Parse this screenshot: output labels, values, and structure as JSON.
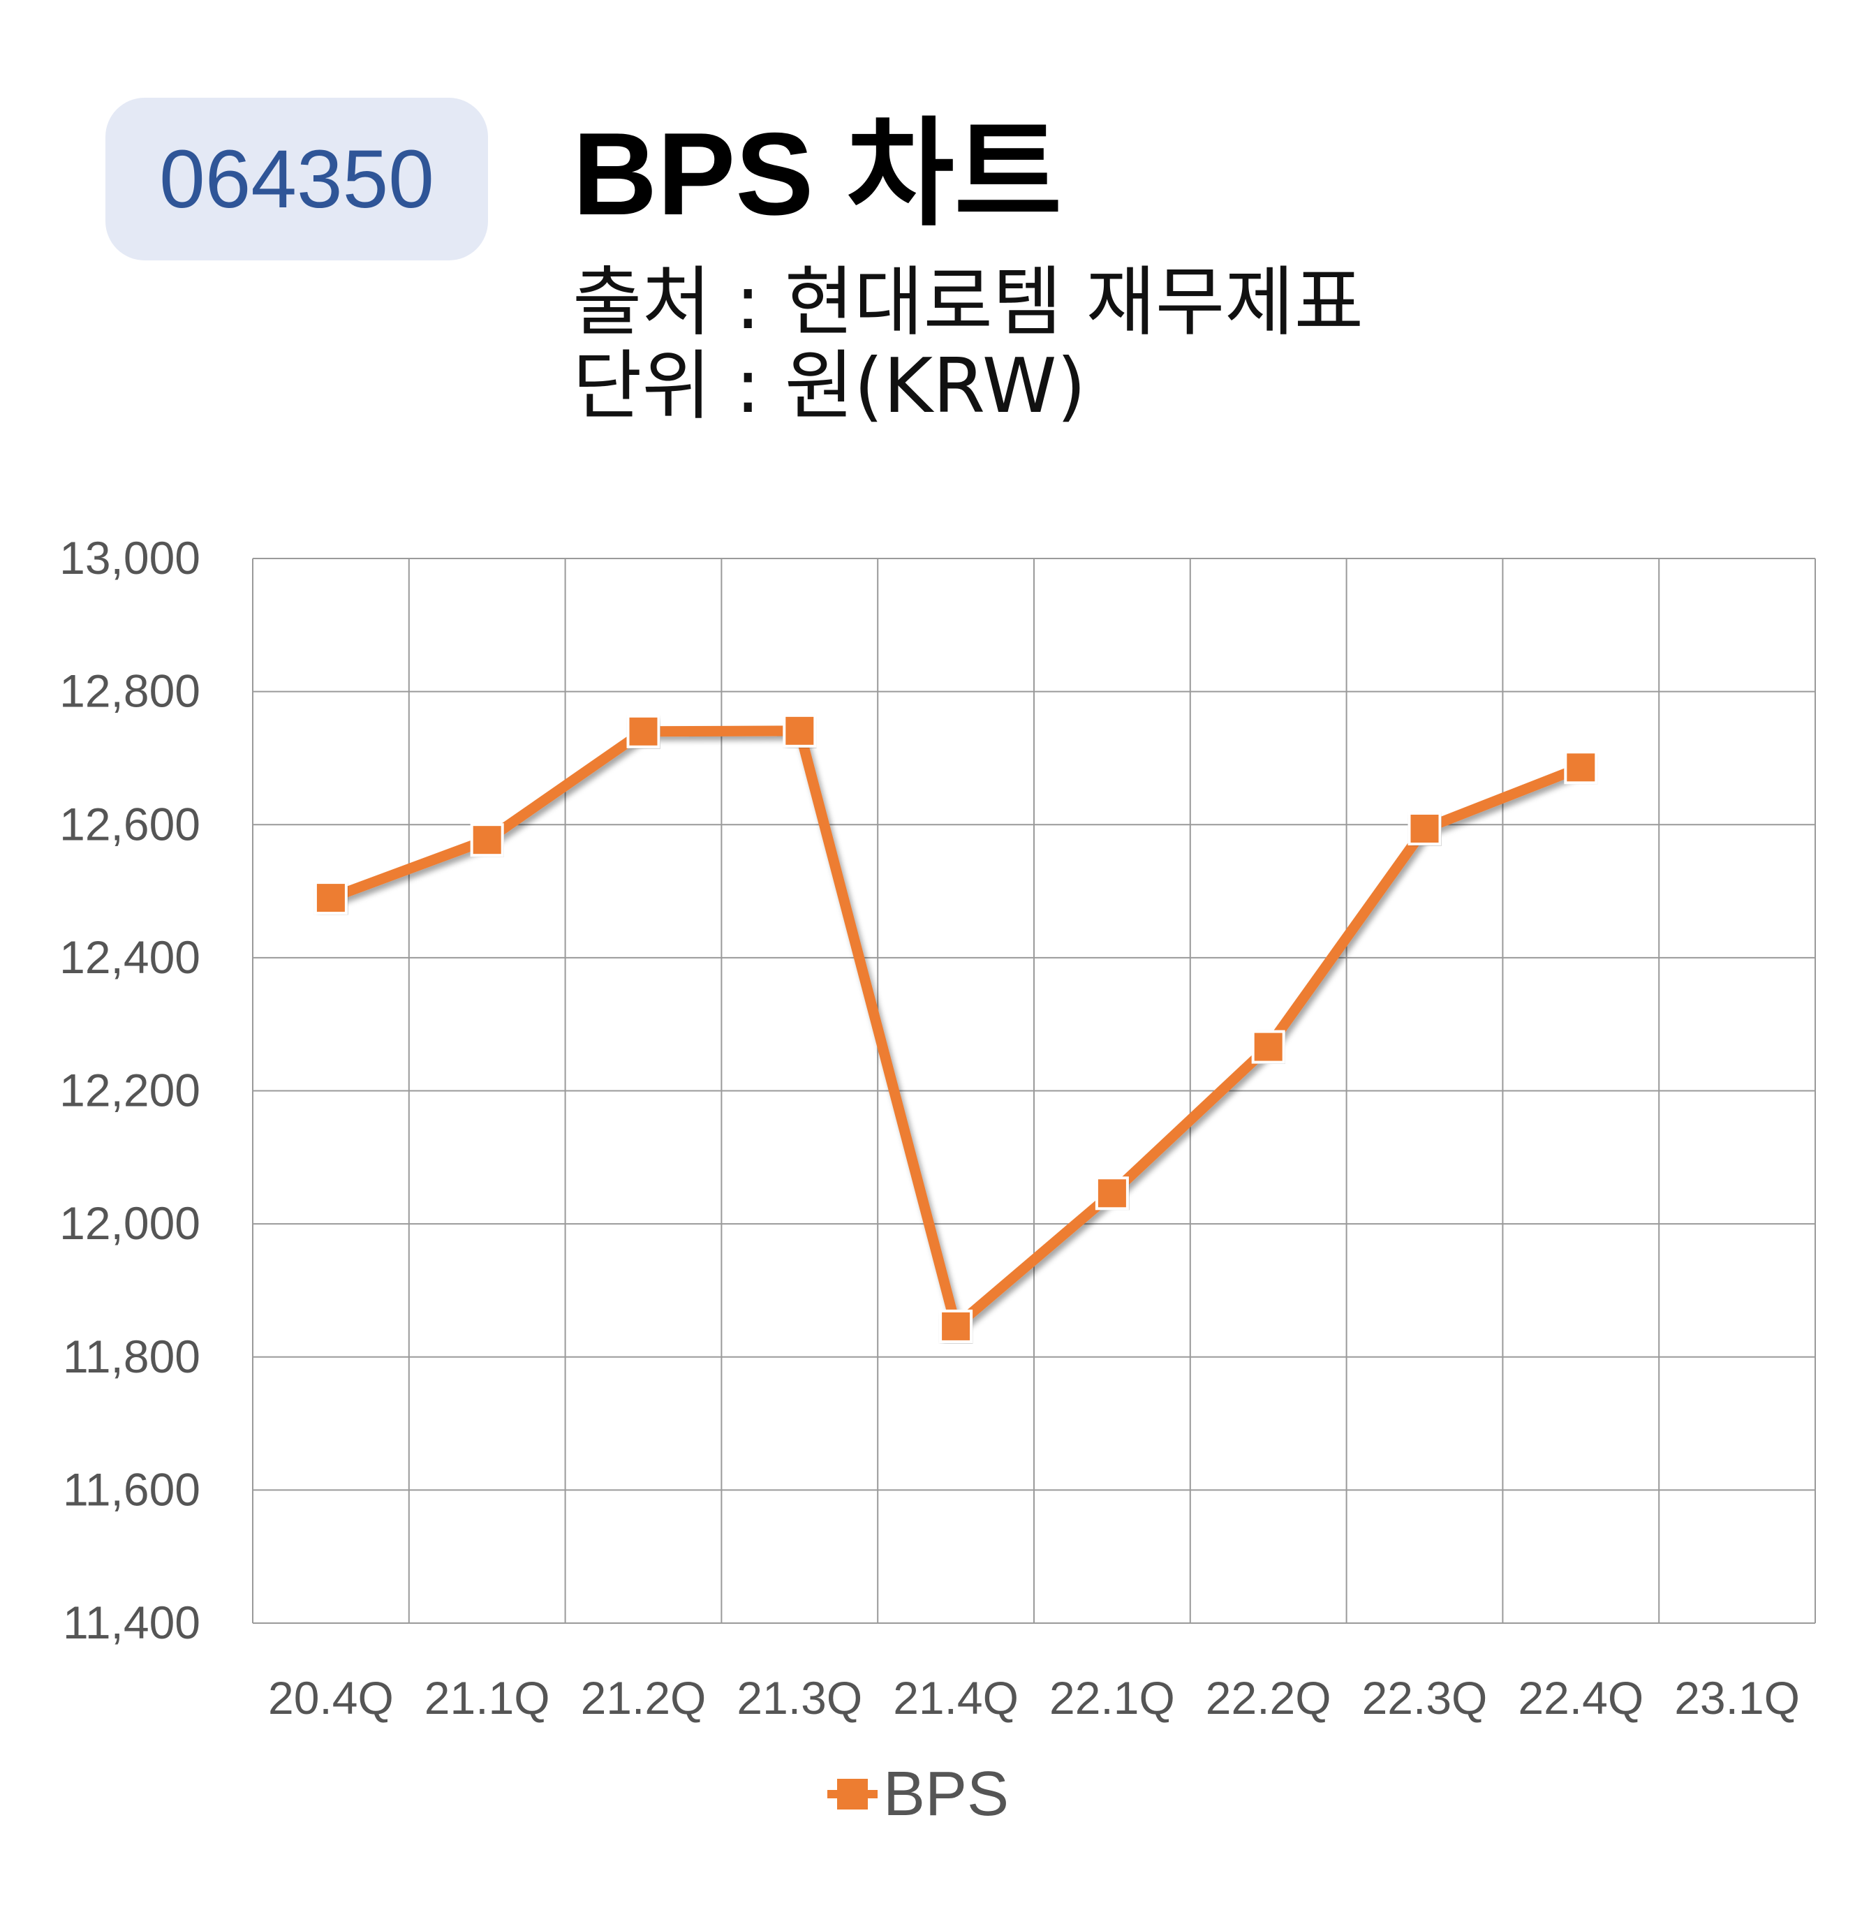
{
  "header": {
    "badge": "064350",
    "title": "BPS 차트",
    "source": "출처 : 현대로템 재무제표",
    "unit": "단위 : 원(KRW)"
  },
  "chart_data": {
    "type": "line",
    "categories": [
      "20.4Q",
      "21.1Q",
      "21.2Q",
      "21.3Q",
      "21.4Q",
      "22.1Q",
      "22.2Q",
      "22.3Q",
      "22.4Q",
      "23.1Q"
    ],
    "series": [
      {
        "name": "BPS",
        "color": "#ed7d31",
        "marker": "square",
        "values": [
          12490,
          12577,
          12740,
          12741,
          11846,
          12046,
          12266,
          12594,
          12686,
          null
        ]
      }
    ],
    "ylim": [
      11400,
      13000
    ],
    "yticks": [
      "11,400",
      "11,600",
      "11,800",
      "12,000",
      "12,200",
      "12,400",
      "12,600",
      "12,800",
      "13,000"
    ],
    "grid": true,
    "legend": "bottom"
  }
}
